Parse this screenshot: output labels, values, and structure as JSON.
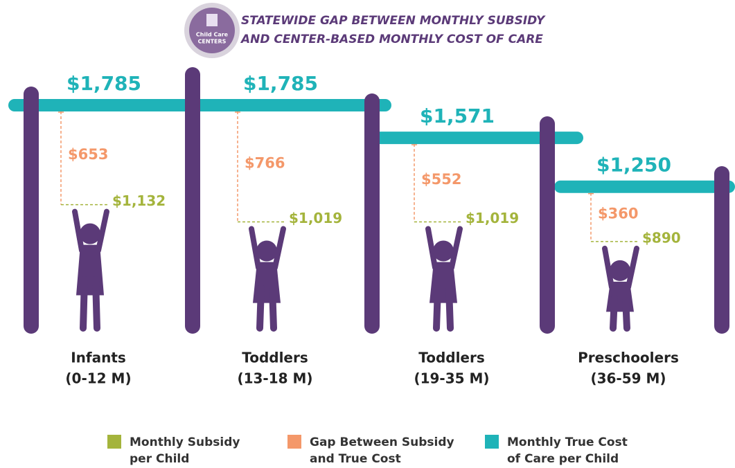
{
  "chart_data": {
    "type": "pictograph",
    "badge": [
      "Child Care",
      "CENTERS"
    ],
    "title": [
      "STATEWIDE GAP BETWEEN MONTHLY SUBSIDY",
      "AND CENTER-BASED MONTHLY COST OF CARE"
    ],
    "categories": [
      [
        "Infants",
        "(0-12 M)"
      ],
      [
        "Toddlers",
        "(13-18 M)"
      ],
      [
        "Toddlers",
        "(19-35 M)"
      ],
      [
        "Preschoolers",
        "(36-59 M)"
      ]
    ],
    "series": [
      {
        "name": "Monthly Subsidy per Child",
        "color": "#a4b43c",
        "values": [
          1132,
          1019,
          1019,
          890
        ],
        "value_labels": [
          "$1,132",
          "$1,019",
          "$1,019",
          "$890"
        ]
      },
      {
        "name": "Gap Between Subsidy and True Cost",
        "color": "#f4986a",
        "values": [
          653,
          766,
          552,
          360
        ],
        "value_labels": [
          "$653",
          "$766",
          "$552",
          "$360"
        ]
      },
      {
        "name": "Monthly True Cost of Care per Child",
        "color": "#1fb3b8",
        "values": [
          1785,
          1785,
          1571,
          1250
        ],
        "value_labels": [
          "$1,785",
          "$1,785",
          "$1,571",
          "$1,250"
        ]
      }
    ]
  }
}
